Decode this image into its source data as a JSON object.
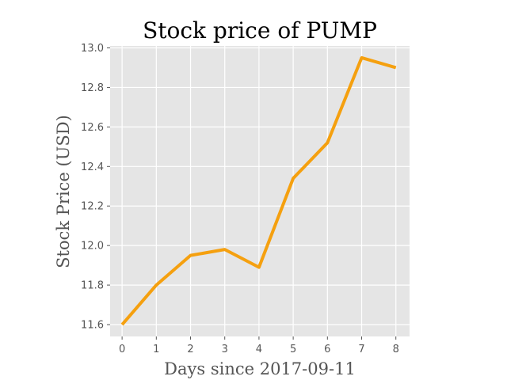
{
  "chart_data": {
    "type": "line",
    "title": "Stock price of PUMP",
    "xlabel": "Days since 2017-09-11",
    "ylabel": "Stock Price (USD)",
    "x": [
      0,
      1,
      2,
      3,
      4,
      5,
      6,
      7,
      8
    ],
    "series": [
      {
        "values": [
          11.6,
          11.8,
          11.95,
          11.98,
          11.89,
          12.34,
          12.52,
          12.95,
          12.9
        ]
      }
    ],
    "xticks": [
      "0",
      "1",
      "2",
      "3",
      "4",
      "5",
      "6",
      "7",
      "8"
    ],
    "yticks": [
      "11.6",
      "11.8",
      "12.0",
      "12.2",
      "12.4",
      "12.6",
      "12.8",
      "13.0"
    ],
    "xlim": [
      -0.35,
      8.4
    ],
    "ylim": [
      11.54,
      13.01
    ],
    "grid": true,
    "colors": {
      "line": "#f5a00f",
      "plot_background": "#e5e5e5",
      "grid": "#ffffff"
    }
  }
}
